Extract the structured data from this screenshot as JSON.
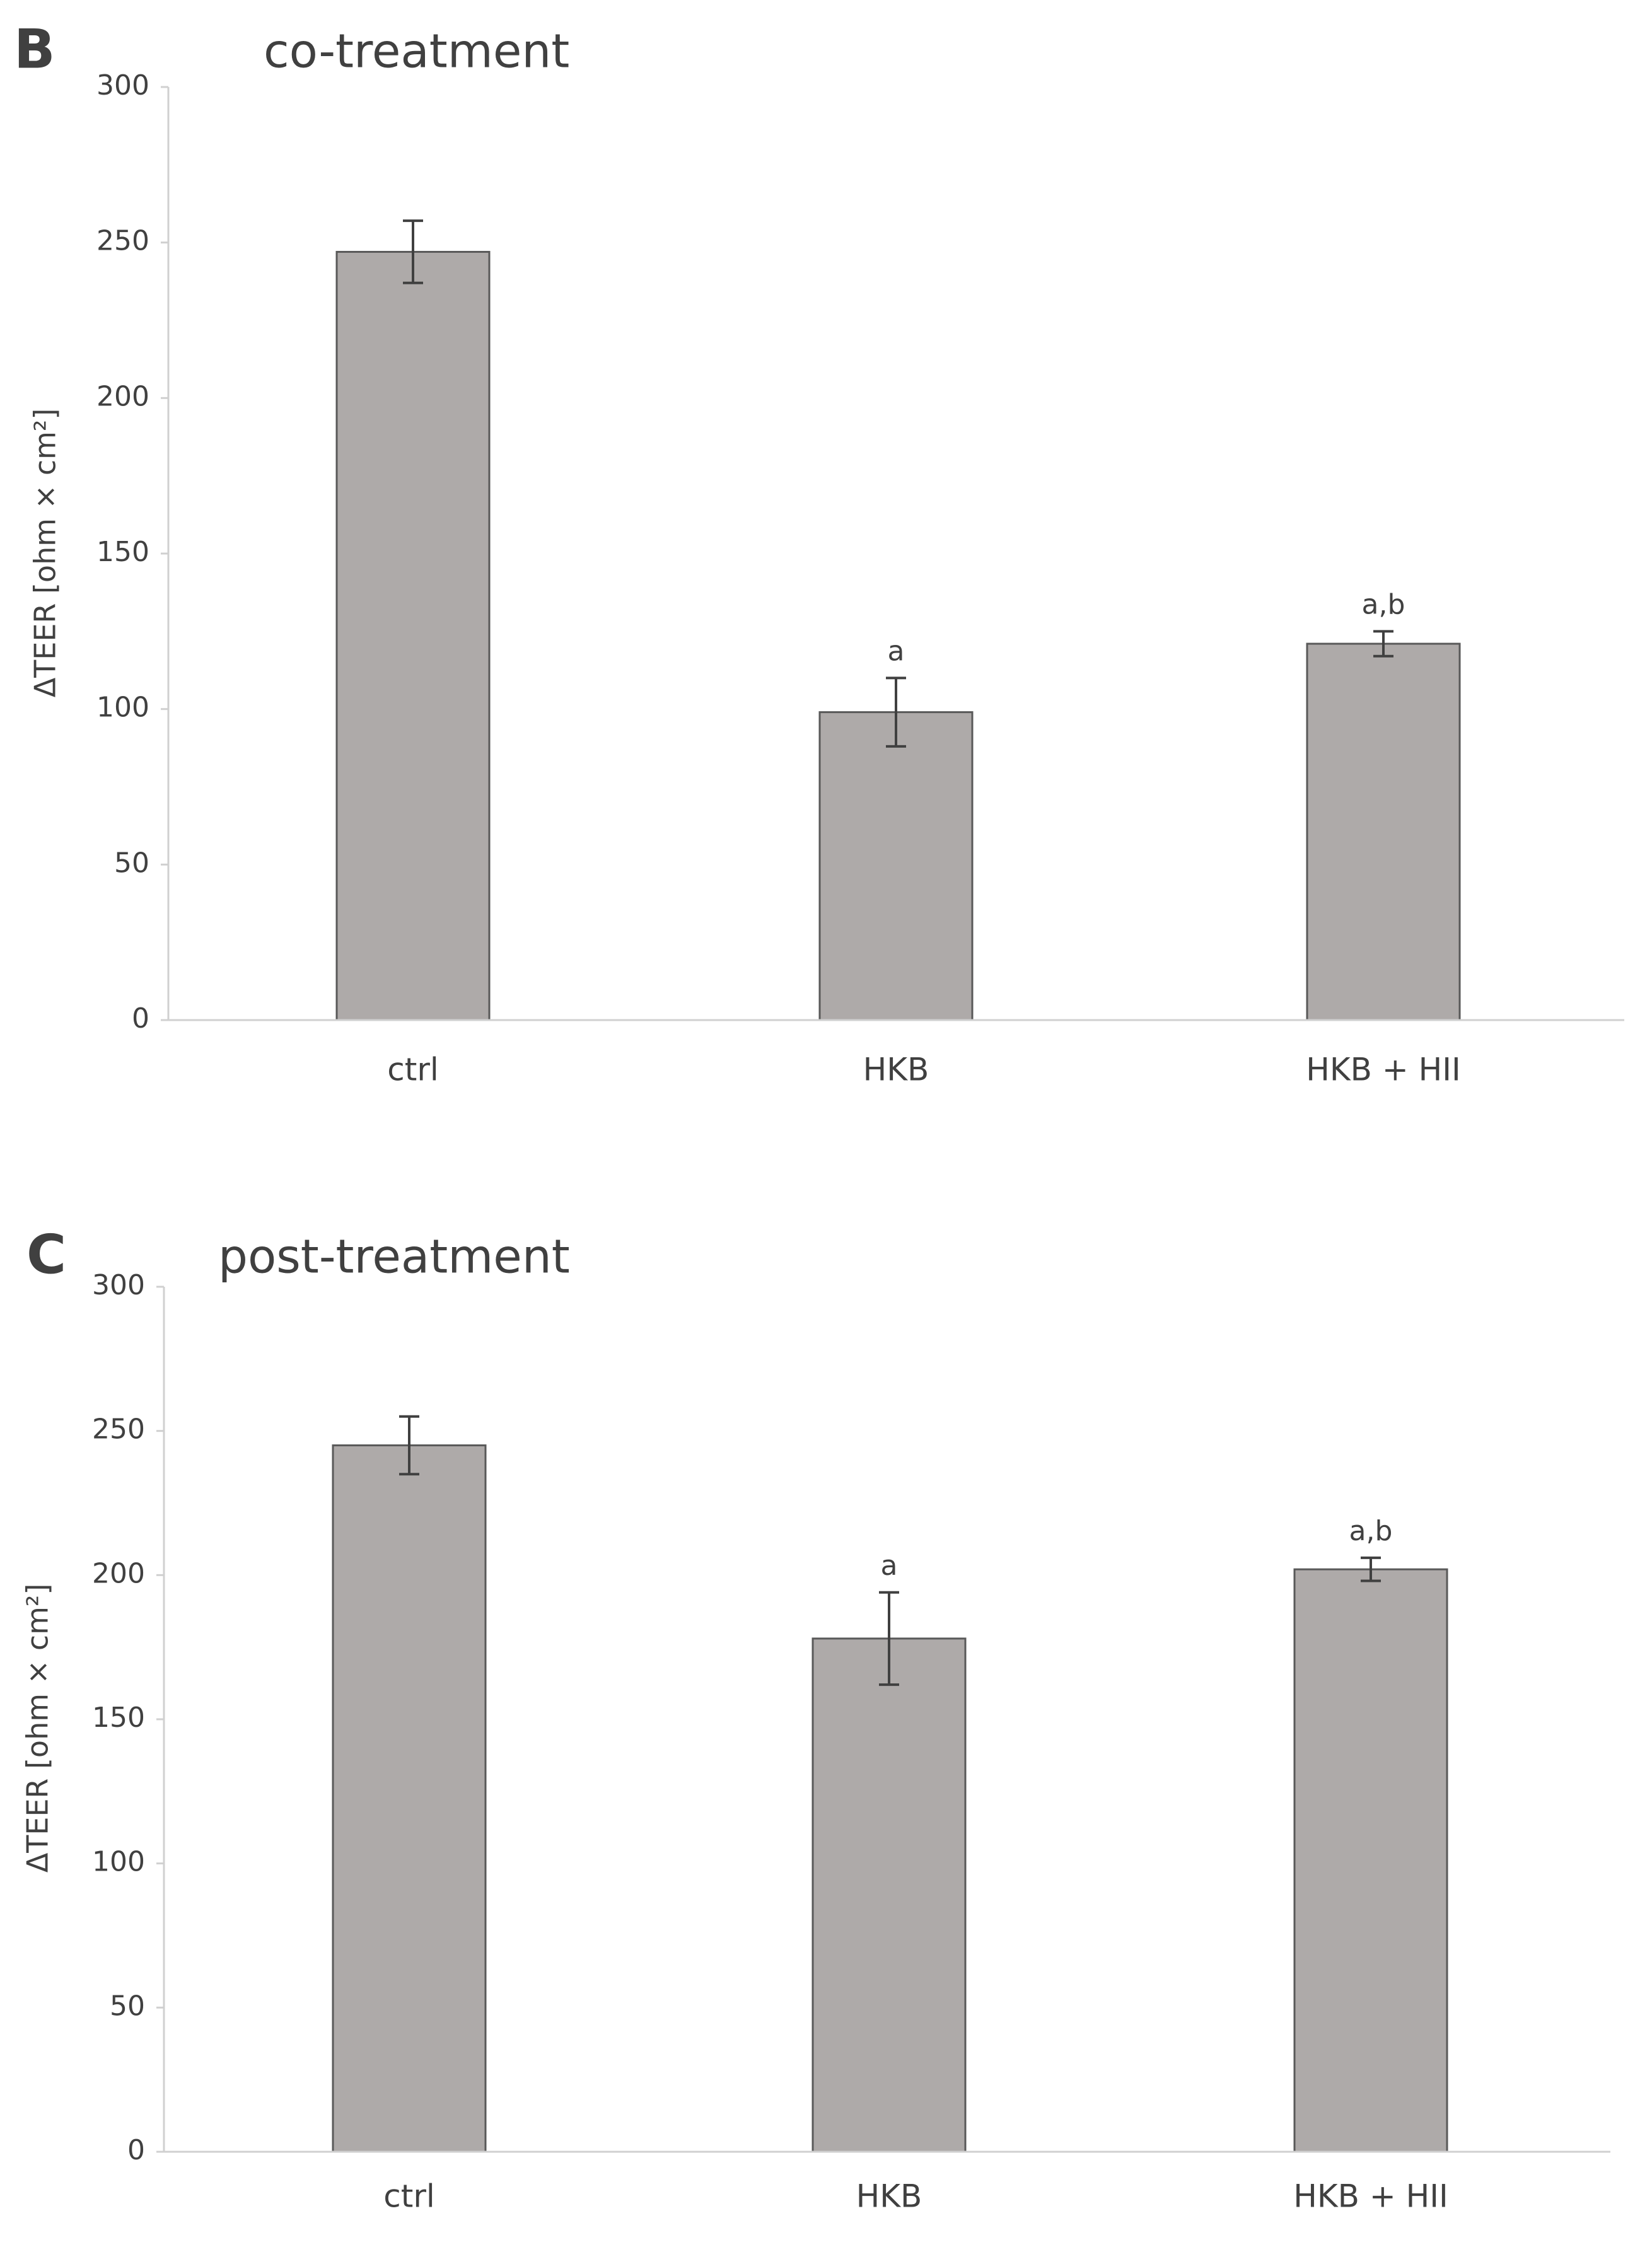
{
  "chart_data": [
    {
      "type": "bar",
      "panel_label": "B",
      "title": "co-treatment",
      "y_label": "ΔTEER [ohm × cm²]",
      "categories": [
        "ctrl",
        "HKB",
        "HKB + HII"
      ],
      "values": [
        247,
        99,
        121
      ],
      "errors": [
        10,
        11,
        4
      ],
      "annotations": [
        null,
        "a",
        "a,b"
      ],
      "color": "#aeaaa9",
      "ylim": [
        0,
        300
      ],
      "yticks": [
        0,
        50,
        100,
        150,
        200,
        250,
        300
      ],
      "grid": false
    },
    {
      "type": "bar",
      "panel_label": "C",
      "title": "post-treatment",
      "y_label": "ΔTEER [ohm × cm²]",
      "categories": [
        "ctrl",
        "HKB",
        "HKB + HII"
      ],
      "values": [
        245,
        178,
        202
      ],
      "errors": [
        10,
        16,
        4
      ],
      "annotations": [
        null,
        "a",
        "a,b"
      ],
      "color": "#aeaaa9",
      "ylim": [
        0,
        300
      ],
      "yticks": [
        0,
        50,
        100,
        150,
        200,
        250,
        300
      ],
      "grid": false
    }
  ]
}
